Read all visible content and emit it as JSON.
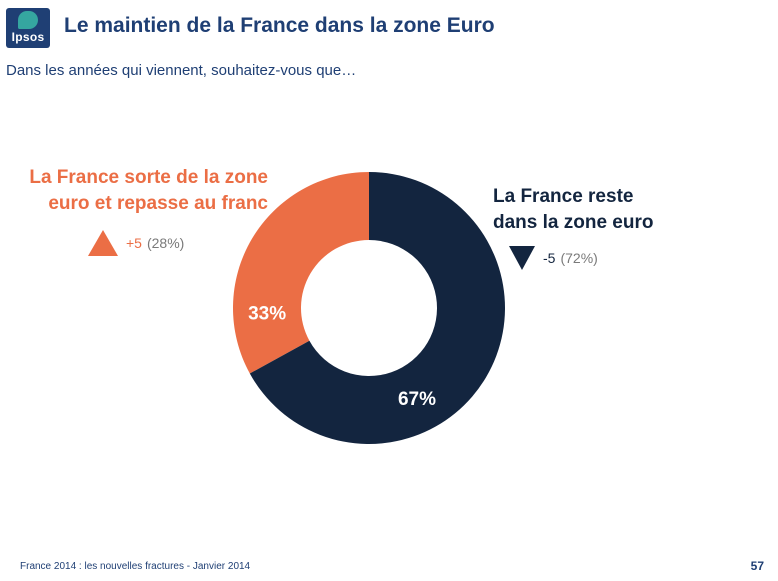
{
  "header": {
    "logo_text": "Ipsos",
    "title": "Le maintien de la France dans la zone Euro"
  },
  "question": "Dans les années qui viennent, souhaitez-vous que…",
  "chart_data": {
    "type": "pie",
    "donut": true,
    "slices": [
      {
        "label_lines": [
          "La France sorte de la zone",
          "euro et repasse au franc"
        ],
        "value": 33,
        "value_label": "33%",
        "change": "+5",
        "change_direction": "up",
        "previous": "(28%)",
        "color": "#eb6e45"
      },
      {
        "label_lines": [
          "La France reste",
          "dans la zone euro"
        ],
        "value": 67,
        "value_label": "67%",
        "change": "-5",
        "change_direction": "down",
        "previous": "(72%)",
        "color": "#13253f"
      }
    ],
    "start": "top",
    "direction": "counterclockwise-first-slice"
  },
  "footer": {
    "source": "France 2014 : les nouvelles fractures - Janvier 2014",
    "page_number": "57"
  }
}
